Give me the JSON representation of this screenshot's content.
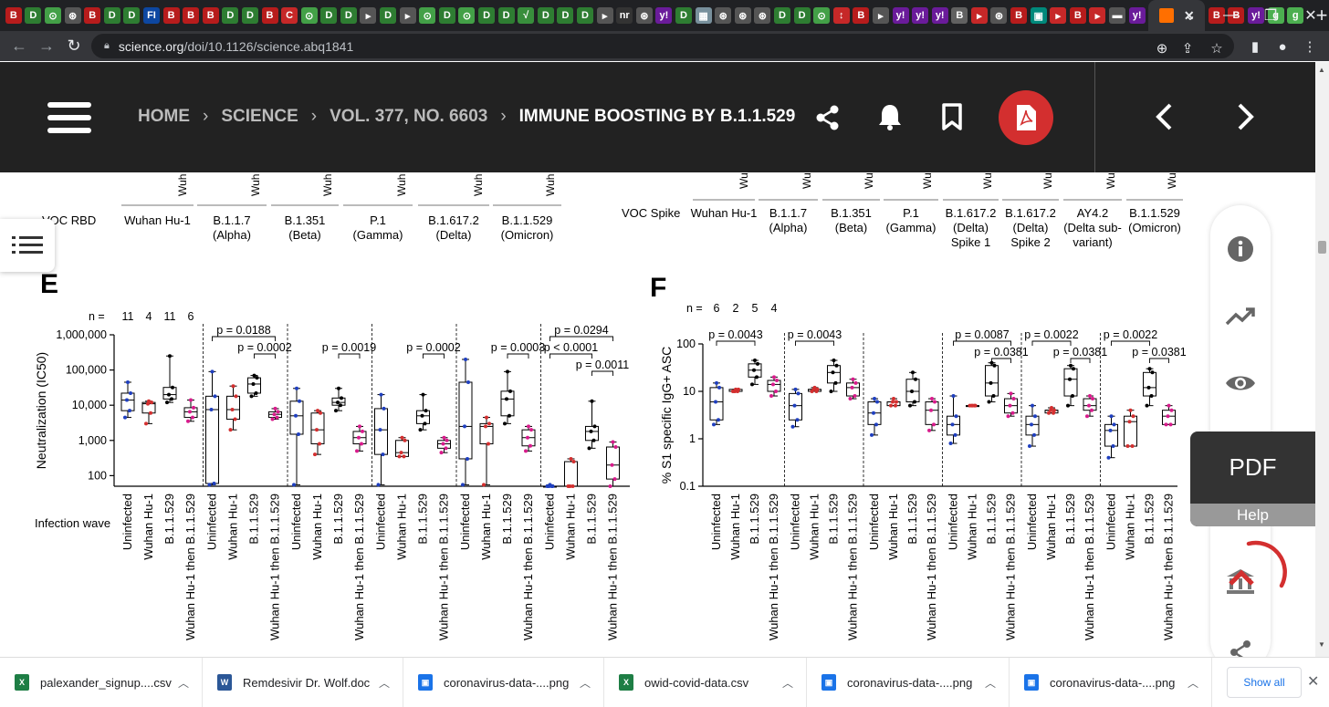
{
  "browser": {
    "tab_favicons": [
      {
        "letter": "B",
        "color": "#b71c1c"
      },
      {
        "letter": "D",
        "color": "#2e7d32"
      },
      {
        "letter": "⊙",
        "color": "#43a047"
      },
      {
        "letter": "⊛",
        "color": "#555"
      },
      {
        "letter": "B",
        "color": "#b71c1c"
      },
      {
        "letter": "D",
        "color": "#2e7d32"
      },
      {
        "letter": "D",
        "color": "#2e7d32"
      },
      {
        "letter": "FI",
        "color": "#0d47a1"
      },
      {
        "letter": "B",
        "color": "#b71c1c"
      },
      {
        "letter": "B",
        "color": "#b71c1c"
      },
      {
        "letter": "B",
        "color": "#b71c1c"
      },
      {
        "letter": "D",
        "color": "#2e7d32"
      },
      {
        "letter": "D",
        "color": "#2e7d32"
      },
      {
        "letter": "B",
        "color": "#b71c1c"
      },
      {
        "letter": "C",
        "color": "#c62828"
      },
      {
        "letter": "⊙",
        "color": "#43a047"
      },
      {
        "letter": "D",
        "color": "#2e7d32"
      },
      {
        "letter": "D",
        "color": "#2e7d32"
      },
      {
        "letter": "▸",
        "color": "#555"
      },
      {
        "letter": "D",
        "color": "#2e7d32"
      },
      {
        "letter": "▸",
        "color": "#555"
      },
      {
        "letter": "⊙",
        "color": "#43a047"
      },
      {
        "letter": "D",
        "color": "#2e7d32"
      },
      {
        "letter": "⊙",
        "color": "#43a047"
      },
      {
        "letter": "D",
        "color": "#2e7d32"
      },
      {
        "letter": "D",
        "color": "#2e7d32"
      },
      {
        "letter": "√",
        "color": "#388e3c"
      },
      {
        "letter": "D",
        "color": "#2e7d32"
      },
      {
        "letter": "D",
        "color": "#2e7d32"
      },
      {
        "letter": "D",
        "color": "#2e7d32"
      },
      {
        "letter": "▸",
        "color": "#555"
      },
      {
        "letter": "nr",
        "color": "#333"
      },
      {
        "letter": "⊛",
        "color": "#555"
      },
      {
        "letter": "y!",
        "color": "#6a1b9a"
      },
      {
        "letter": "D",
        "color": "#2e7d32"
      },
      {
        "letter": "▦",
        "color": "#78909c"
      },
      {
        "letter": "⊛",
        "color": "#555"
      },
      {
        "letter": "⊛",
        "color": "#555"
      },
      {
        "letter": "⊛",
        "color": "#555"
      },
      {
        "letter": "D",
        "color": "#2e7d32"
      },
      {
        "letter": "D",
        "color": "#2e7d32"
      },
      {
        "letter": "⊙",
        "color": "#43a047"
      },
      {
        "letter": "↕",
        "color": "#c62828"
      },
      {
        "letter": "B",
        "color": "#b71c1c"
      },
      {
        "letter": "▸",
        "color": "#555"
      },
      {
        "letter": "y!",
        "color": "#6a1b9a"
      },
      {
        "letter": "y!",
        "color": "#6a1b9a"
      },
      {
        "letter": "y!",
        "color": "#6a1b9a"
      },
      {
        "letter": "B",
        "color": "#616161"
      },
      {
        "letter": "▸",
        "color": "#c62828"
      },
      {
        "letter": "⊛",
        "color": "#555"
      },
      {
        "letter": "B",
        "color": "#b71c1c"
      },
      {
        "letter": "▣",
        "color": "#00897b"
      },
      {
        "letter": "▸",
        "color": "#c62828"
      },
      {
        "letter": "B",
        "color": "#b71c1c"
      },
      {
        "letter": "▸",
        "color": "#c62828"
      },
      {
        "letter": "▬",
        "color": "#555"
      },
      {
        "letter": "y!",
        "color": "#6a1b9a"
      }
    ],
    "tab_favicons_after": [
      {
        "letter": "B",
        "color": "#b71c1c"
      },
      {
        "letter": "B",
        "color": "#b71c1c"
      },
      {
        "letter": "y!",
        "color": "#6a1b9a"
      },
      {
        "letter": "g",
        "color": "#4caf50"
      },
      {
        "letter": "g",
        "color": "#4caf50"
      }
    ],
    "new_tab": "+",
    "url_host": "science.org",
    "url_path": "/doi/10.1126/science.abq1841"
  },
  "site": {
    "breadcrumb": [
      "HOME",
      "SCIENCE",
      "VOL. 377, NO. 6603",
      "IMMUNE BOOSTING BY B.1.1.529"
    ],
    "breadcrumb_sep": "›"
  },
  "figure": {
    "rbd": {
      "row_label": "VOC RBD",
      "header_fragment": "Wuh",
      "columns": [
        [
          "Wuhan Hu-1"
        ],
        [
          "B.1.1.7",
          "(Alpha)"
        ],
        [
          "B.1.351",
          "(Beta)"
        ],
        [
          "P.1",
          "(Gamma)"
        ],
        [
          "B.1.617.2",
          "(Delta)"
        ],
        [
          "B.1.1.529",
          "(Omicron)"
        ]
      ]
    },
    "spike": {
      "row_label": "VOC Spike",
      "header_fragment": "Wu",
      "columns": [
        [
          "Wuhan Hu-1"
        ],
        [
          "B.1.1.7",
          "(Alpha)"
        ],
        [
          "B.1.351",
          "(Beta)"
        ],
        [
          "P.1",
          "(Gamma)"
        ],
        [
          "B.1.617.2",
          "(Delta)",
          "Spike 1"
        ],
        [
          "B.1.617.2",
          "(Delta)",
          "Spike 2"
        ],
        [
          "AY4.2",
          "(Delta sub-",
          "variant)"
        ],
        [
          "B.1.1.529",
          "(Omicron)"
        ]
      ]
    },
    "colors": {
      "Uninfected": "#1f3fbf",
      "Wuhan Hu-1": "#d32f2f",
      "B.1.1.529": "#000000",
      "Wuhan Hu-1 then B.1.1.529": "#d81b8c"
    }
  },
  "chart_data": [
    {
      "panel": "E",
      "type": "box",
      "ylabel": "Neutralization (IC50)",
      "yscale": "log",
      "ylim": [
        50,
        1000000
      ],
      "yticks": [
        "100",
        "1,000",
        "10,000",
        "100,000",
        "1,000,000"
      ],
      "xlabel": "Infection wave",
      "n_label": "n =",
      "n": [
        11,
        4,
        11,
        6
      ],
      "categories": [
        "Uninfected",
        "Wuhan Hu-1",
        "B.1.1.529",
        "Wuhan Hu-1 then B.1.1.529"
      ],
      "groups": [
        {
          "boxes": [
            [
              4500,
              7000,
              14000,
              22000,
              45000
            ],
            [
              3000,
              6000,
              11000,
              12000,
              13000
            ],
            [
              12000,
              15000,
              20000,
              32000,
              250000
            ],
            [
              3500,
              4500,
              6500,
              8500,
              14000
            ]
          ],
          "pvalues": []
        },
        {
          "boxes": [
            [
              55,
              60,
              7500,
              18000,
              90000
            ],
            [
              2000,
              4000,
              7500,
              18000,
              35000
            ],
            [
              18000,
              22000,
              40000,
              60000,
              70000
            ],
            [
              4000,
              4500,
              5500,
              6500,
              8000
            ]
          ],
          "pvalues": [
            {
              "text": "p = 0.0188",
              "from": 0,
              "to": 3,
              "level": 0
            },
            {
              "text": "p = 0.0002",
              "from": 2,
              "to": 3,
              "level": 1
            }
          ]
        },
        {
          "boxes": [
            [
              55,
              1500,
              5000,
              13000,
              30000
            ],
            [
              400,
              800,
              2000,
              6000,
              7000
            ],
            [
              7000,
              10000,
              12000,
              16000,
              30000
            ],
            [
              500,
              800,
              1200,
              1800,
              2500
            ]
          ],
          "pvalues": [
            {
              "text": "p = 0.0019",
              "from": 2,
              "to": 3,
              "level": 1
            }
          ]
        },
        {
          "boxes": [
            [
              55,
              400,
              2000,
              8000,
              20000
            ],
            [
              350,
              350,
              450,
              1000,
              1200
            ],
            [
              2000,
              3000,
              5000,
              7000,
              20000
            ],
            [
              450,
              600,
              800,
              1000,
              1200
            ]
          ],
          "pvalues": [
            {
              "text": "p = 0.0002",
              "from": 2,
              "to": 3,
              "level": 1
            }
          ]
        },
        {
          "boxes": [
            [
              55,
              300,
              2500,
              45000,
              200000
            ],
            [
              55,
              800,
              2500,
              3000,
              4500
            ],
            [
              3000,
              5000,
              15000,
              25000,
              90000
            ],
            [
              500,
              700,
              1200,
              2000,
              2500
            ]
          ],
          "pvalues": [
            {
              "text": "p = 0.0003",
              "from": 2,
              "to": 3,
              "level": 1
            }
          ]
        },
        {
          "boxes": [
            [
              50,
              50,
              50,
              50,
              55
            ],
            [
              50,
              50,
              50,
              250,
              300
            ],
            [
              600,
              1000,
              1800,
              2500,
              13000
            ],
            [
              50,
              80,
              200,
              650,
              900
            ]
          ],
          "pvalues": [
            {
              "text": "p = 0.0294",
              "from": 0,
              "to": 3,
              "level": 0
            },
            {
              "text": "p < 0.0001",
              "from": 0,
              "to": 2,
              "level": 1
            },
            {
              "text": "p = 0.0011",
              "from": 2,
              "to": 3,
              "level": 2
            }
          ]
        }
      ]
    },
    {
      "panel": "F",
      "type": "box",
      "ylabel": "% S1 specific IgG+ ASC",
      "yscale": "log",
      "ylim": [
        0.1,
        100
      ],
      "yticks": [
        "0.1",
        "1",
        "10",
        "100"
      ],
      "n_label": "n =",
      "n": [
        6,
        2,
        5,
        4
      ],
      "categories": [
        "Uninfected",
        "Wuhan Hu-1",
        "B.1.1.529",
        "Wuhan Hu-1 then B.1.1.529"
      ],
      "groups": [
        {
          "boxes": [
            [
              2,
              2.5,
              6,
              12,
              15
            ],
            [
              10,
              10,
              10,
              11,
              11
            ],
            [
              14,
              20,
              28,
              38,
              45
            ],
            [
              8,
              10,
              14,
              17,
              20
            ]
          ],
          "pvalues": [
            {
              "text": "p = 0.0043",
              "from": 0,
              "to": 2,
              "level": 0
            }
          ]
        },
        {
          "boxes": [
            [
              1.8,
              2.5,
              5,
              9,
              11
            ],
            [
              10,
              10,
              11,
              11,
              12
            ],
            [
              10,
              15,
              25,
              35,
              45
            ],
            [
              7,
              8,
              12,
              15,
              18
            ]
          ],
          "pvalues": [
            {
              "text": "p = 0.0043",
              "from": 0,
              "to": 2,
              "level": 0
            }
          ]
        },
        {
          "boxes": [
            [
              1.2,
              2,
              3.5,
              6,
              7
            ],
            [
              5,
              5,
              6,
              6,
              7
            ],
            [
              5,
              6,
              10,
              18,
              25
            ],
            [
              1.5,
              2,
              4,
              6,
              7
            ]
          ],
          "pvalues": []
        },
        {
          "boxes": [
            [
              0.8,
              1.2,
              2,
              3,
              8
            ],
            [
              5,
              5,
              5,
              5,
              5
            ],
            [
              6,
              8,
              15,
              35,
              40
            ],
            [
              3,
              3.5,
              5,
              7,
              9
            ]
          ],
          "pvalues": [
            {
              "text": "p = 0.0087",
              "from": 0,
              "to": 3,
              "level": 0
            },
            {
              "text": "p = 0.0381",
              "from": 2,
              "to": 3,
              "level": 1
            }
          ]
        },
        {
          "boxes": [
            [
              0.7,
              1.2,
              2,
              3,
              5
            ],
            [
              3.5,
              3.5,
              4,
              4,
              4.5
            ],
            [
              5,
              8,
              18,
              30,
              35
            ],
            [
              3,
              4,
              5,
              7,
              8
            ]
          ],
          "pvalues": [
            {
              "text": "p = 0.0022",
              "from": 0,
              "to": 2,
              "level": 0
            },
            {
              "text": "p = 0.0381",
              "from": 2,
              "to": 3,
              "level": 1
            }
          ]
        },
        {
          "boxes": [
            [
              0.4,
              0.7,
              1.5,
              2,
              3
            ],
            [
              0.7,
              0.7,
              2.3,
              3,
              4
            ],
            [
              5,
              8,
              12,
              25,
              30
            ],
            [
              2,
              2,
              3,
              4,
              5
            ]
          ],
          "pvalues": [
            {
              "text": "p = 0.0022",
              "from": 0,
              "to": 2,
              "level": 0
            },
            {
              "text": "p = 0.0381",
              "from": 2,
              "to": 3,
              "level": 1
            }
          ]
        }
      ]
    }
  ],
  "sidepanel": {
    "pdf_label": "PDF",
    "help_label": "Help"
  },
  "downloads": {
    "items": [
      {
        "name": "palexander_signup....csv",
        "type": "xls",
        "color": "#1e7e45"
      },
      {
        "name": "Remdesivir Dr. Wolf.doc",
        "type": "doc",
        "color": "#2b5797"
      },
      {
        "name": "coronavirus-data-....png",
        "type": "img",
        "color": "#1a73e8"
      },
      {
        "name": "owid-covid-data.csv",
        "type": "xls",
        "color": "#1e7e45"
      },
      {
        "name": "coronavirus-data-....png",
        "type": "img",
        "color": "#1a73e8"
      },
      {
        "name": "coronavirus-data-....png",
        "type": "img",
        "color": "#1a73e8"
      }
    ],
    "show_all": "Show all"
  }
}
